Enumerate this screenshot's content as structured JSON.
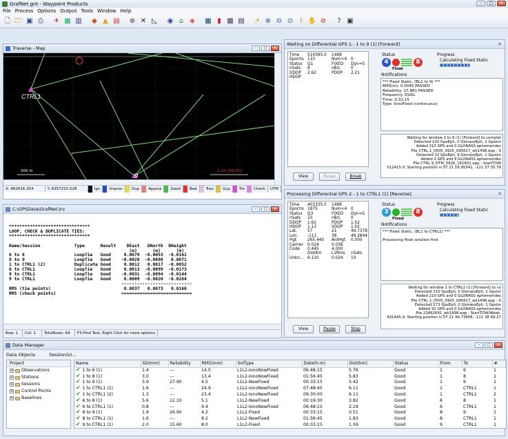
{
  "app": {
    "title": "GrafNet.gnt - Waypoint Products"
  },
  "menu": [
    "File",
    "Process",
    "Options",
    "Output",
    "Tools",
    "Window",
    "Help"
  ],
  "map": {
    "title": "Traverse - Map",
    "labels": {
      "ctrl1": "CTRL1",
      "nine": "9",
      "scale300": "300 m",
      "fixed": "2 cm (59.4%)"
    },
    "status": [
      "X: 462616.354",
      "Y: 6357215.528",
      "Ign",
      "Unproc",
      "Dup",
      "Approx",
      "Good",
      "Bad",
      "Trav",
      "Gcp",
      "Tie",
      "Check",
      "UTM"
    ]
  },
  "trv": {
    "title": "C:\\GPSData\\GrafNet.trv",
    "text": "*******************************\nLOOP, CHECK & DUPLICATE TIES:\n*******************************\n\nName/Session             Type      Result    DEast   DNorth  DHeight\n                                              (m)      (m)      (m)\n6 to 8                   LoopTie   Good     0.0079  -0.0053  -0.0161\n8 to 9                   LoopTie   Good    -0.0020  -0.0098   0.0071\n1 to CTRL1 (2)           Duplicate Good     0.0012   0.0017  -0.0052\n6 to CTRL1               LoopTie   Good     0.0013  -0.0099  -0.0173\n8 to CTRL1               LoopTie   Good    -0.0031  -0.0094  -0.0144\n9 to CTRL1               LoopTie   Good     0.0009  -0.0020  -0.0264\n                                           ---------------------------\nRMS (tie points)                            0.0037   0.0073   0.0160\nRMS (check points)                         ===========================",
    "status": [
      "Row: 1",
      "Col: 1",
      "TotalRows: 64",
      "F3-Find Text, Right Click for more options"
    ]
  },
  "gps1": {
    "title": "Waiting on Differential GPS 1 - 1 to 9 (1) [Forward]",
    "rows": [
      [
        "Time",
        "514395.0",
        "1498",
        ""
      ],
      [
        "Epochs",
        "133",
        "Num<4",
        "0"
      ],
      [
        "Status",
        "Q1",
        "FIXED",
        "Dyn=S"
      ],
      [
        "nSats",
        "8",
        "nB/L",
        "0"
      ],
      [
        "DDOP",
        "2.62",
        "PDOP",
        "2.21"
      ],
      [
        "HDOP",
        "",
        "",
        ""
      ]
    ],
    "status_label": "Status",
    "progress_label": "Progress",
    "progress_text": "Calculating Fixed Static",
    "float_label": "Float",
    "notif_label": "Notifications",
    "notif": [
      "*** Fixed Static, (BL1 to 9) ***",
      "RMS(m):          0.0045   PASSED",
      "Reliability:     27.881   PASSED",
      "Frequency:       DUAL",
      "Time:            0:32:15",
      "Type:            IonoFixed (continuous)"
    ],
    "log": [
      "Waiting for window 1 to 9 (1) [Forward] to complet",
      "Detected 210 GpsEph, 0 GlonassEph, 1 Gpslon",
      "Added 210 GPS and 0 GLONASS ephemerides",
      "File CTRL 1_0505_0925_095617_wk1498.epp - S",
      "Detected 32 GpsEph, 9 GlonassEph, 1 Gpslon",
      "Added 0 GPS and 9 GLONASS ephemerides",
      "File CTRL 9_DTM_0926_161601.epp - StartTOW",
      "512415.0: Starting position is 57 21 16.95541, -111 37 35.79"
    ],
    "buttons": [
      "View",
      "Pause",
      "Break"
    ]
  },
  "gps2": {
    "title": "Processing Differential GPS 2 - 1 to CTRL1 (1) [Reverse]",
    "rows": [
      [
        "Time",
        "403335.0",
        "1498",
        ""
      ],
      [
        "Epochs",
        "1875",
        "Num<4",
        "0"
      ],
      [
        "Status",
        "Q3",
        "FIXED",
        "Dyn=S"
      ],
      [
        "nSats",
        "10",
        "nB/L",
        "0"
      ],
      [
        "DDOP",
        "1.62",
        "PDOP",
        "1.52"
      ],
      [
        "HDOP",
        "1.13",
        "VDOP",
        "1.02"
      ],
      [
        "Lat.",
        "57",
        "21",
        "49.7378"
      ],
      [
        "Lon.",
        "-111",
        "38",
        "49.2844"
      ],
      [
        "Hgt",
        "265.440",
        "AntHgt",
        "0.000"
      ],
      [
        "Carrier",
        "0.024",
        "0.036",
        ""
      ],
      [
        "Code",
        "0.445",
        "4.000",
        ""
      ],
      [
        "",
        "DistKm",
        "L1Rms",
        "nSats"
      ],
      [
        "Unkn...",
        "6.110",
        "0.024",
        "10"
      ]
    ],
    "status_label": "Status",
    "progress_label": "Progress",
    "progress_text": "Calculating Fixed Static",
    "fixed_label": "Fixed",
    "notif_label": "Notifications",
    "notif": [
      "*** Fixed Static, (BL1 to CTRL1) ***",
      "",
      "Processing float solution first"
    ],
    "log": [
      "Waiting for window 1 to CTRL1 (1) [Forward] to co",
      "Detected 210 GpsEph, 0 GlonassEph, 1 Gpslor",
      "Added 210 GPS and 0 GLONASS ephemerides",
      "File CTRL 1_0505_0925_095617_wk1498.epp - S",
      "Detected 273 GpsEph, 0 GlonassEph, 1 Gpslor",
      "Added 92 GPS and 0 GLONASS ephemerides",
      "File 21862691_wk1498.epp - StartTOW/Week:",
      "431445.0: Starting position is 57 21 49.73858, -111 38 49.27"
    ],
    "buttons": [
      "View",
      "Pause",
      "Stop"
    ]
  },
  "dm": {
    "title": "Data Manager",
    "tabs": [
      "Data Objects",
      "Session(s)..."
    ],
    "tree_header": "Project",
    "tree": [
      "Observations",
      "Stations",
      "Sessions",
      "Control Points",
      "Baselines"
    ],
    "columns": [
      "Name",
      "SD(mm)",
      "Reliability",
      "RMS(mm)",
      "SolType",
      "Date(h:m)",
      "Dist(km)",
      "Status",
      "From",
      "To",
      "#"
    ],
    "rows": [
      [
        "1 to 6 (1)",
        "1.4",
        "---",
        "14.0",
        "L1L2-IonoNowFixed",
        "06:48:15",
        "5.76",
        "Good",
        "1",
        "6",
        "1"
      ],
      [
        "1 to 8 (1)",
        "3.0",
        "---",
        "13.4",
        "L1L2-IonoNowFixed",
        "01:56:45",
        "5.83",
        "Good",
        "1",
        "8",
        "1"
      ],
      [
        "1 to 9 (1)",
        "3.9",
        "27.90",
        "4.5",
        "L1L2-NewFixed",
        "00:33:15",
        "5.42",
        "Good",
        "1",
        "9",
        "1"
      ],
      [
        "1 to CTRL1 (1)",
        "1.6",
        "---",
        "24.9",
        "L1L2-IonoNewFixed",
        "07:48:45",
        "6.11",
        "Good",
        "1",
        "CTRL1",
        "1"
      ],
      [
        "1 to CTRL1 (2)",
        "1.3",
        "---",
        "23.4",
        "L1L2-IonoNewFixed",
        "09:30:00",
        "6.11",
        "Good",
        "1",
        "CTRL1",
        "2"
      ],
      [
        "6 to 8 (1)",
        "5.6",
        "12.10",
        "5.1",
        "L1L2-NewFixed",
        "00:19:30",
        "3.82",
        "Good",
        "6",
        "8",
        "1"
      ],
      [
        "6 to CTRL1 (1)",
        "0.8",
        "---",
        "9.4",
        "L1L2-IonoNewFixed",
        "06:48:15",
        "2.19",
        "Good",
        "6",
        "CTRL1",
        "1"
      ],
      [
        "8 to 9 (1)",
        "1.9",
        "26.90",
        "4.2",
        "L1L2-Fixed",
        "00:33:15",
        "0.51",
        "Good",
        "8",
        "9",
        "1"
      ],
      [
        "8 to CTRL1 (1)",
        "1.6",
        "---",
        "8.2",
        "L1L2-NewFixed",
        "01:56:45",
        "1.83",
        "Good",
        "8",
        "CTRL1",
        "1"
      ],
      [
        "9 to CTRL1 (1)",
        "2.0",
        "15.60",
        "8.0",
        "L1L2-Fixed",
        "00:33:15",
        "1.59",
        "Good",
        "9",
        "CTRL1",
        "1"
      ]
    ]
  }
}
